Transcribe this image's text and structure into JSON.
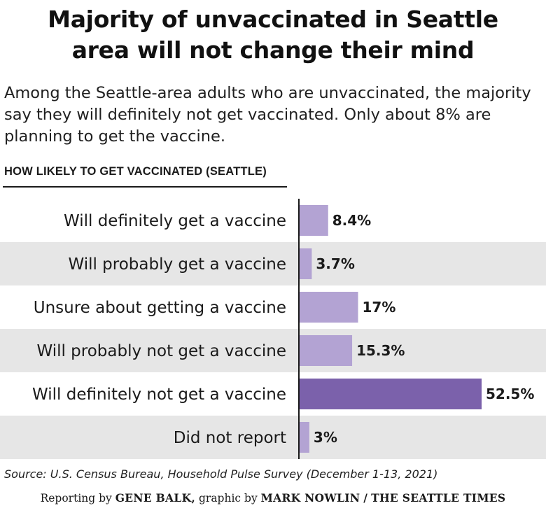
{
  "title_line1": "Majority of unvaccinated in Seattle",
  "title_line2": "area will not change their mind",
  "subtitle": "Among the Seattle-area adults who are unvaccinated, the majority say they will definitely not get vaccinated. Only about 8% are planning to get the vaccine.",
  "section_label": "HOW LIKELY TO GET VACCINATED (SEATTLE)",
  "source": "Source: U.S. Census Bureau, Household Pulse Survey (December 1-13, 2021)",
  "credit": {
    "prefix": "Reporting by",
    "reporter": "GENE BALK,",
    "middle": "graphic by",
    "designer": "MARK NOWLIN",
    "separator": "/",
    "outlet": "THE SEATTLE TIMES"
  },
  "colors": {
    "bar_light": "#b3a3d3",
    "bar_highlight": "#7b61ab",
    "band": "#e6e6e6",
    "axis": "#1a1a1a"
  },
  "chart_data": {
    "type": "bar",
    "orientation": "horizontal",
    "categories": [
      "Will definitely get a vaccine",
      "Will probably get a vaccine",
      "Unsure about getting a vaccine",
      "Will probably not get a vaccine",
      "Will definitely not get a vaccine",
      "Did not report"
    ],
    "values": [
      8.4,
      3.7,
      17,
      15.3,
      52.5,
      3
    ],
    "value_labels": [
      "8.4%",
      "3.7%",
      "17%",
      "15.3%",
      "52.5%",
      "3%"
    ],
    "highlight_index": 4,
    "xlim": [
      0,
      52.5
    ],
    "grid": false,
    "legend": "none"
  }
}
